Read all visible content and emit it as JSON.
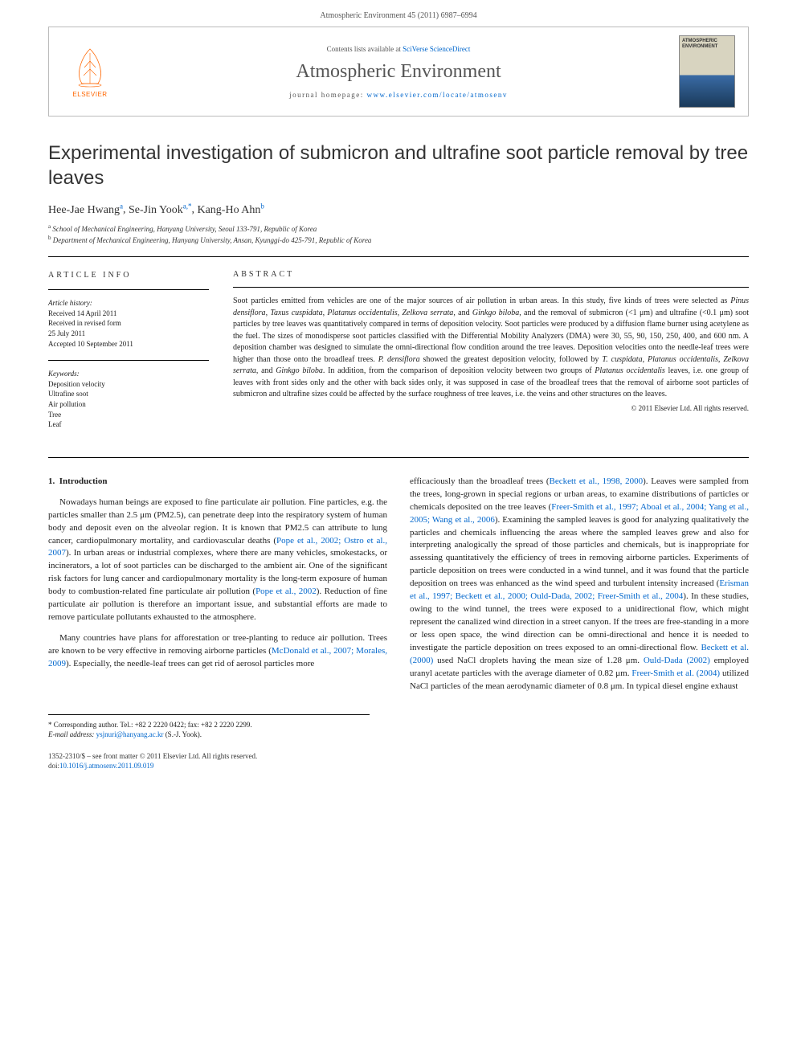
{
  "header": {
    "citation": "Atmospheric Environment 45 (2011) 6987–6994"
  },
  "banner": {
    "elsevier_label": "ELSEVIER",
    "contents_prefix": "Contents lists available at ",
    "contents_link": "SciVerse ScienceDirect",
    "journal_name": "Atmospheric Environment",
    "homepage_prefix": "journal homepage: ",
    "homepage_url": "www.elsevier.com/locate/atmosenv",
    "cover_title": "ATMOSPHERIC ENVIRONMENT"
  },
  "title": "Experimental investigation of submicron and ultrafine soot particle removal by tree leaves",
  "authors": [
    {
      "name": "Hee-Jae Hwang",
      "marks": "a"
    },
    {
      "name": "Se-Jin Yook",
      "marks": "a,*"
    },
    {
      "name": "Kang-Ho Ahn",
      "marks": "b"
    }
  ],
  "affiliations": [
    {
      "mark": "a",
      "text": "School of Mechanical Engineering, Hanyang University, Seoul 133-791, Republic of Korea"
    },
    {
      "mark": "b",
      "text": "Department of Mechanical Engineering, Hanyang University, Ansan, Kyunggi-do 425-791, Republic of Korea"
    }
  ],
  "article_info": {
    "heading": "ARTICLE INFO",
    "history_label": "Article history:",
    "history": [
      "Received 14 April 2011",
      "Received in revised form",
      "25 July 2011",
      "Accepted 10 September 2011"
    ],
    "keywords_label": "Keywords:",
    "keywords": [
      "Deposition velocity",
      "Ultrafine soot",
      "Air pollution",
      "Tree",
      "Leaf"
    ]
  },
  "abstract": {
    "heading": "ABSTRACT",
    "text_parts": [
      "Soot particles emitted from vehicles are one of the major sources of air pollution in urban areas. In this study, five kinds of trees were selected as ",
      "Pinus densiflora",
      ", ",
      "Taxus cuspidata",
      ", ",
      "Platanus occidentalis",
      ", ",
      "Zelkova serrata",
      ", and ",
      "Ginkgo biloba",
      ", and the removal of submicron (<1 μm) and ultrafine (<0.1 μm) soot particles by tree leaves was quantitatively compared in terms of deposition velocity. Soot particles were produced by a diffusion flame burner using acetylene as the fuel. The sizes of monodisperse soot particles classified with the Differential Mobility Analyzers (DMA) were 30, 55, 90, 150, 250, 400, and 600 nm. A deposition chamber was designed to simulate the omni-directional flow condition around the tree leaves. Deposition velocities onto the needle-leaf trees were higher than those onto the broadleaf trees. ",
      "P. densiflora",
      " showed the greatest deposition velocity, followed by ",
      "T. cuspidata",
      ", ",
      "Platanus occidentalis",
      ", ",
      "Zelkova serrata",
      ", and ",
      "Ginkgo biloba",
      ". In addition, from the comparison of deposition velocity between two groups of ",
      "Platanus occidentalis",
      " leaves, i.e. one group of leaves with front sides only and the other with back sides only, it was supposed in case of the broadleaf trees that the removal of airborne soot particles of submicron and ultrafine sizes could be affected by the surface roughness of tree leaves, i.e. the veins and other structures on the leaves."
    ],
    "copyright": "© 2011 Elsevier Ltd. All rights reserved."
  },
  "body": {
    "section_number": "1.",
    "section_title": "Introduction",
    "col1_p1_parts": [
      "Nowadays human beings are exposed to fine particulate air pollution. Fine particles, e.g. the particles smaller than 2.5 μm (PM2.5), can penetrate deep into the respiratory system of human body and deposit even on the alveolar region. It is known that PM2.5 can attribute to lung cancer, cardiopulmonary mortality, and cardiovascular deaths (",
      "Pope et al., 2002; Ostro et al., 2007",
      "). In urban areas or industrial complexes, where there are many vehicles, smokestacks, or incinerators, a lot of soot particles can be discharged to the ambient air. One of the significant risk factors for lung cancer and cardiopulmonary mortality is the long-term exposure of human body to combustion-related fine particulate air pollution (",
      "Pope et al., 2002",
      "). Reduction of fine particulate air pollution is therefore an important issue, and substantial efforts are made to remove particulate pollutants exhausted to the atmosphere."
    ],
    "col1_p2_parts": [
      "Many countries have plans for afforestation or tree-planting to reduce air pollution. Trees are known to be very effective in removing airborne particles (",
      "McDonald et al., 2007; Morales, 2009",
      "). Especially, the needle-leaf trees can get rid of aerosol particles more"
    ],
    "col2_p1_parts": [
      "efficaciously than the broadleaf trees (",
      "Beckett et al., 1998, 2000",
      "). Leaves were sampled from the trees, long-grown in special regions or urban areas, to examine distributions of particles or chemicals deposited on the tree leaves (",
      "Freer-Smith et al., 1997; Aboal et al., 2004; Yang et al., 2005; Wang et al., 2006",
      "). Examining the sampled leaves is good for analyzing qualitatively the particles and chemicals influencing the areas where the sampled leaves grew and also for interpreting analogically the spread of those particles and chemicals, but is inappropriate for assessing quantitatively the efficiency of trees in removing airborne particles. Experiments of particle deposition on trees were conducted in a wind tunnel, and it was found that the particle deposition on trees was enhanced as the wind speed and turbulent intensity increased (",
      "Erisman et al., 1997; Beckett et al., 2000; Ould-Dada, 2002; Freer-Smith et al., 2004",
      "). In these studies, owing to the wind tunnel, the trees were exposed to a unidirectional flow, which might represent the canalized wind direction in a street canyon. If the trees are free-standing in a more or less open space, the wind direction can be omni-directional and hence it is needed to investigate the particle deposition on trees exposed to an omni-directional flow. ",
      "Beckett et al. (2000)",
      " used NaCl droplets having the mean size of 1.28 μm. ",
      "Ould-Dada (2002)",
      " employed uranyl acetate particles with the average diameter of 0.82 μm. ",
      "Freer-Smith et al. (2004)",
      " utilized NaCl particles of the mean aerodynamic diameter of 0.8 μm. In typical diesel engine exhaust"
    ]
  },
  "footnote": {
    "corr_label": "* Corresponding author. Tel.: +82 2 2220 0422; fax: +82 2 2220 2299.",
    "email_label": "E-mail address:",
    "email": "ysjnuri@hanyang.ac.kr",
    "email_name": "(S.-J. Yook)."
  },
  "footer": {
    "issn_line": "1352-2310/$ – see front matter © 2011 Elsevier Ltd. All rights reserved.",
    "doi_line": "doi:",
    "doi": "10.1016/j.atmosenv.2011.09.019"
  },
  "colors": {
    "link": "#0066cc",
    "elsevier_orange": "#ff6600",
    "text": "#222222",
    "rule": "#000000"
  }
}
